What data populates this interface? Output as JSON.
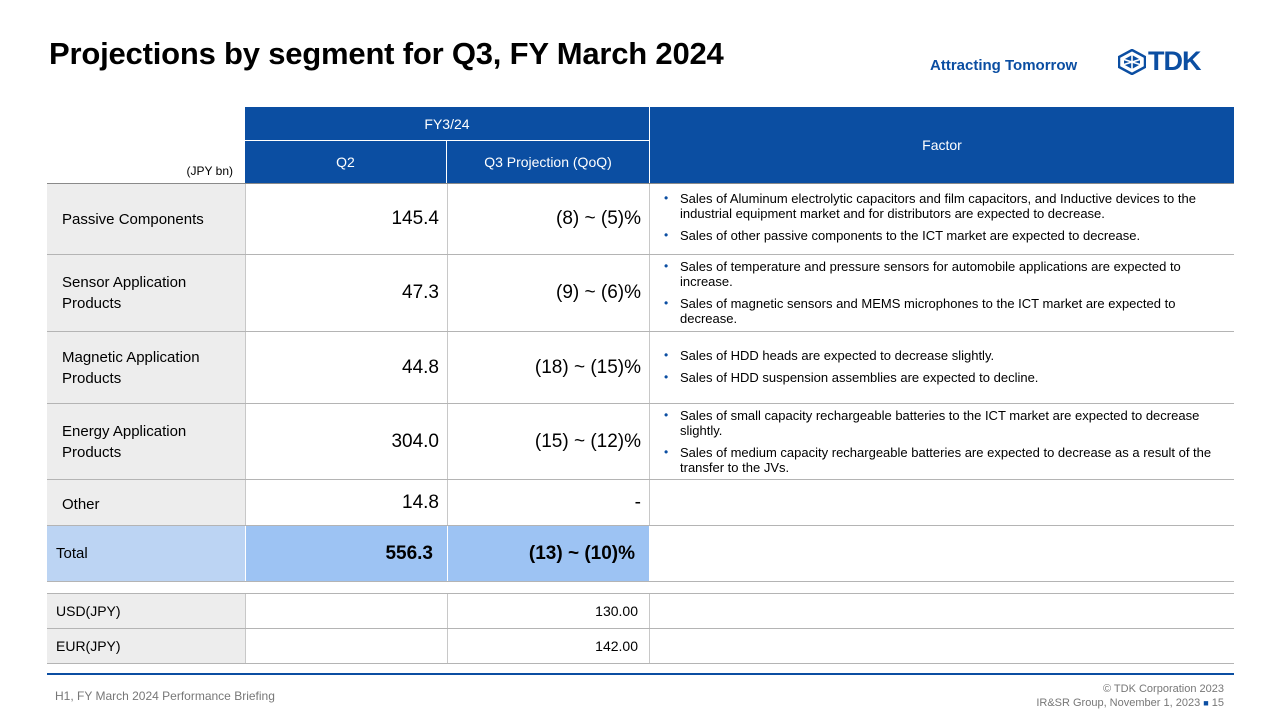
{
  "header": {
    "title": "Projections by segment for Q3, FY March 2024",
    "tagline": "Attracting Tomorrow",
    "logo_text": "TDK"
  },
  "table": {
    "unit": "(JPY bn)",
    "fy_label": "FY3/24",
    "col_q2": "Q2",
    "col_q3": "Q3 Projection (QoQ)",
    "col_factor": "Factor",
    "rows": [
      {
        "segment": "Passive  Components",
        "q2": "145.4",
        "q3": "(8) ~ (5)%",
        "factors": [
          "Sales of Aluminum electrolytic capacitors and film capacitors, and Inductive devices to the industrial equipment market and for distributors are expected to decrease.",
          "Sales of other passive components to the ICT market are expected to decrease."
        ]
      },
      {
        "segment": "Sensor Application Products",
        "q2": "47.3",
        "q3": "(9) ~ (6)%",
        "factors": [
          "Sales of temperature and pressure sensors for automobile applications are expected to increase.",
          "Sales of magnetic sensors and MEMS microphones to the ICT market are expected to decrease."
        ]
      },
      {
        "segment": "Magnetic  Application Products",
        "q2": "44.8",
        "q3": "(18) ~ (15)%",
        "factors": [
          "Sales of HDD heads are expected to decrease slightly.",
          "Sales of HDD suspension assemblies are expected to decline."
        ]
      },
      {
        "segment": "Energy Application Products",
        "q2": "304.0",
        "q3": "(15) ~ (12)%",
        "factors": [
          "Sales of small capacity rechargeable batteries to the ICT market are expected to decrease slightly.",
          "Sales of medium capacity rechargeable batteries are expected to decrease as a result of the transfer to the JVs."
        ]
      }
    ],
    "other": {
      "segment": "Other",
      "q2": "14.8",
      "q3": "-"
    },
    "total": {
      "label": "Total",
      "q2": "556.3",
      "q3": "(13) ~ (10)%"
    },
    "fx": [
      {
        "label": "USD(JPY)",
        "value": "130.00"
      },
      {
        "label": "EUR(JPY)",
        "value": "142.00"
      }
    ]
  },
  "footer": {
    "left": "H1, FY March 2024 Performance Briefing",
    "copyright": "© TDK Corporation 2023",
    "group": "IR&SR Group, November 1, 2023",
    "page": "15"
  },
  "colors": {
    "brand_blue": "#0b4ea2",
    "total_light": "#bcd4f3",
    "total_dark": "#9dc3f3",
    "label_gray": "#ededed"
  }
}
